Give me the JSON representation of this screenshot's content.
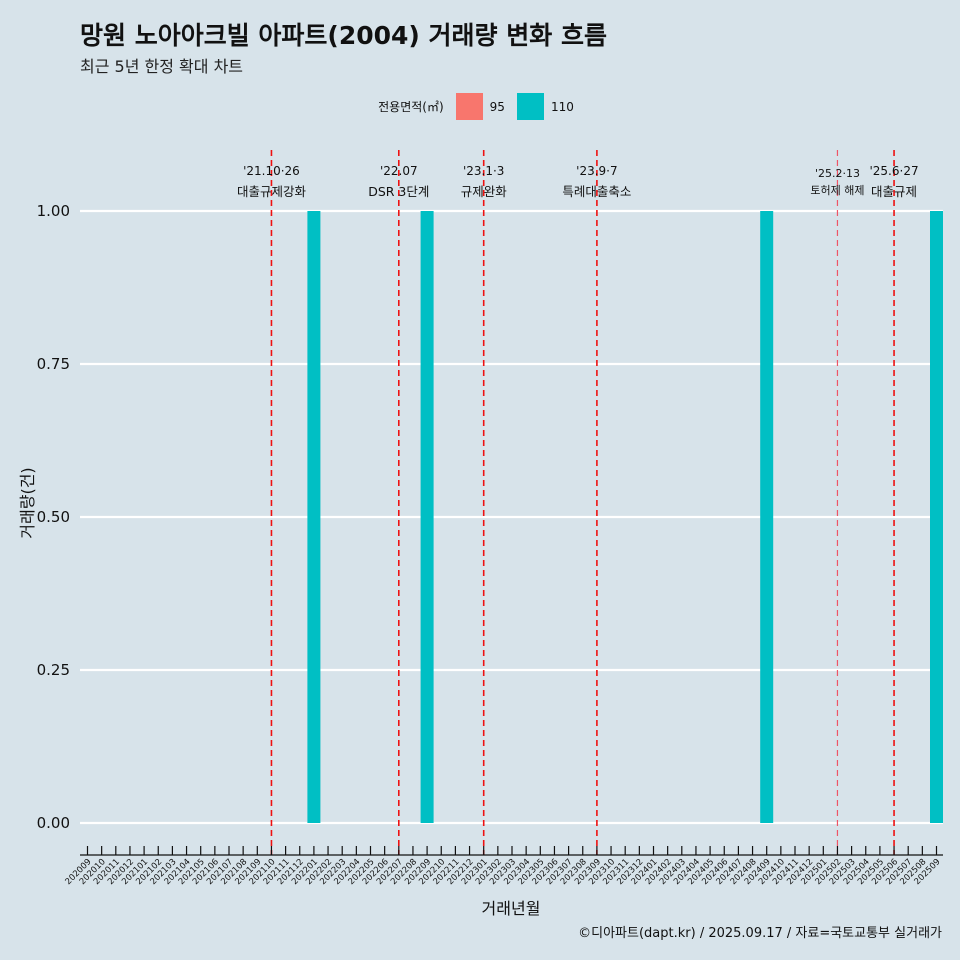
{
  "title": "망원 노아아크빌 아파트(2004) 거래량 변화 흐름",
  "subtitle": "최근 5년 한정 확대 차트",
  "caption": "©디아파트(dapt.kr) / 2025.09.17 / 자료=국토교통부 실거래가",
  "legend": {
    "title": "전용면적(㎡)",
    "items": [
      {
        "label": "95",
        "color": "#f8766d"
      },
      {
        "label": "110",
        "color": "#00bfc4"
      }
    ]
  },
  "chart_data": {
    "type": "bar",
    "xlabel": "거래년월",
    "ylabel": "거래량(건)",
    "ylim": [
      0,
      1
    ],
    "yticks": [
      "0.00",
      "0.25",
      "0.50",
      "0.75",
      "1.00"
    ],
    "categories": [
      "202009",
      "202010",
      "202011",
      "202012",
      "202101",
      "202102",
      "202103",
      "202104",
      "202105",
      "202106",
      "202107",
      "202108",
      "202109",
      "202110",
      "202111",
      "202112",
      "202201",
      "202202",
      "202203",
      "202204",
      "202205",
      "202206",
      "202207",
      "202208",
      "202209",
      "202210",
      "202211",
      "202212",
      "202301",
      "202302",
      "202303",
      "202304",
      "202305",
      "202306",
      "202307",
      "202308",
      "202309",
      "202310",
      "202311",
      "202312",
      "202401",
      "202402",
      "202403",
      "202404",
      "202405",
      "202406",
      "202407",
      "202408",
      "202409",
      "202410",
      "202411",
      "202412",
      "202501",
      "202502",
      "202503",
      "202504",
      "202505",
      "202506",
      "202507",
      "202508",
      "202509"
    ],
    "series": [
      {
        "name": "95",
        "color": "#f8766d",
        "values": [
          0,
          0,
          0,
          0,
          0,
          0,
          0,
          0,
          0,
          0,
          0,
          0,
          0,
          0,
          0,
          0,
          0,
          0,
          0,
          0,
          0,
          0,
          0,
          0,
          0,
          0,
          0,
          0,
          0,
          0,
          0,
          0,
          0,
          0,
          0,
          0,
          0,
          0,
          0,
          0,
          0,
          0,
          0,
          0,
          0,
          0,
          0,
          0,
          0,
          0,
          0,
          0,
          0,
          0,
          0,
          0,
          0,
          0,
          0,
          0,
          0
        ]
      },
      {
        "name": "110",
        "color": "#00bfc4",
        "values": [
          0,
          0,
          0,
          0,
          0,
          0,
          0,
          0,
          0,
          0,
          0,
          0,
          0,
          0,
          0,
          0,
          1,
          0,
          0,
          0,
          0,
          0,
          0,
          0,
          1,
          0,
          0,
          0,
          0,
          0,
          0,
          0,
          0,
          0,
          0,
          0,
          0,
          0,
          0,
          0,
          0,
          0,
          0,
          0,
          0,
          0,
          0,
          0,
          1,
          0,
          0,
          0,
          0,
          0,
          0,
          0,
          0,
          0,
          0,
          0,
          1
        ]
      }
    ],
    "events": [
      {
        "date": "'21.10·26",
        "label": "대출규제강화",
        "month": "202110",
        "style": "bold"
      },
      {
        "date": "'22.07",
        "label": "DSR 3단계",
        "month": "202207",
        "style": "bold"
      },
      {
        "date": "'23.1·3",
        "label": "규제완화",
        "month": "202301",
        "style": "bold"
      },
      {
        "date": "'23.9·7",
        "label": "특례대출축소",
        "month": "202309",
        "style": "bold"
      },
      {
        "date": "'25.2·13",
        "label": "토허제 해제",
        "month": "202502",
        "style": "light"
      },
      {
        "date": "'25.6·27",
        "label": "대출규제",
        "month": "202506",
        "style": "bold"
      }
    ]
  }
}
